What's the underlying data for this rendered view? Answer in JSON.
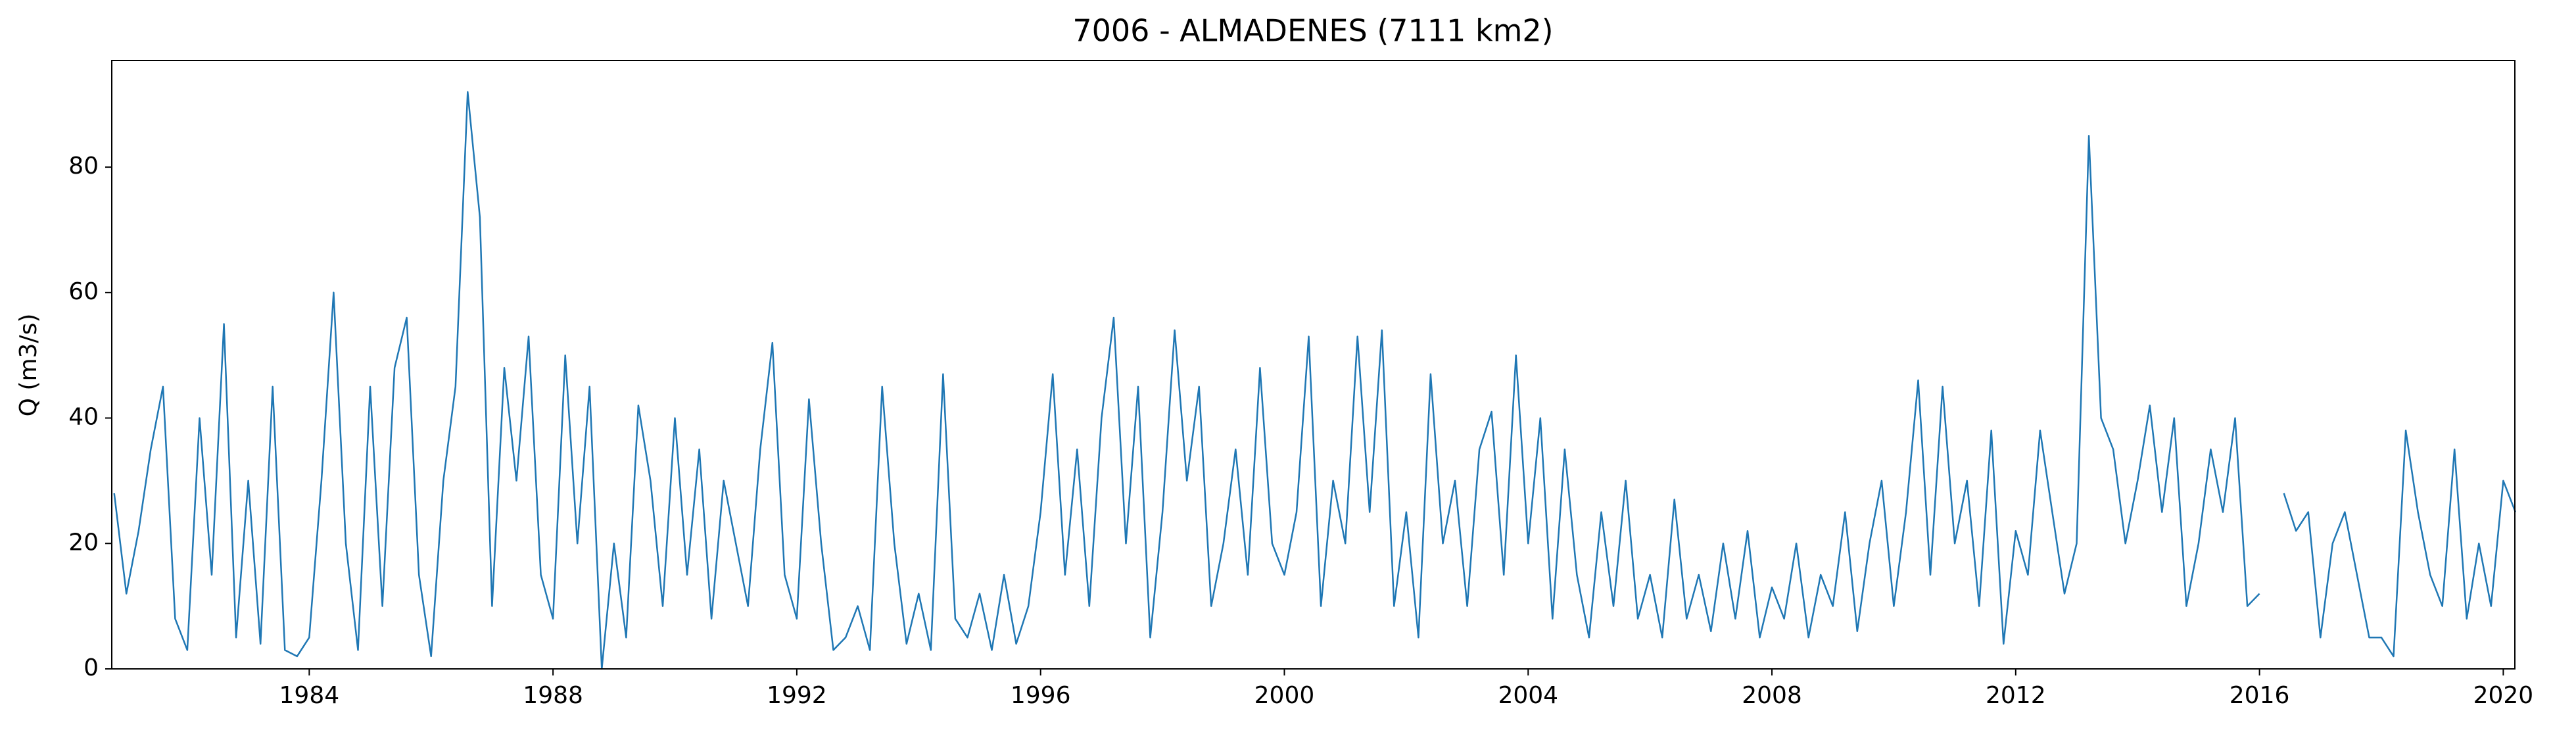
{
  "chart_data": {
    "type": "line",
    "title": "7006 - ALMADENES (7111 km2)",
    "y_label": "Q (m3/s)",
    "x": [
      1980.8,
      1981.0,
      1981.2,
      1981.4,
      1981.6,
      1981.8,
      1982.0,
      1982.2,
      1982.4,
      1982.6,
      1982.8,
      1983.0,
      1983.2,
      1983.4,
      1983.6,
      1983.8,
      1984.0,
      1984.2,
      1984.4,
      1984.6,
      1984.8,
      1985.0,
      1985.2,
      1985.4,
      1985.6,
      1985.8,
      1986.0,
      1986.2,
      1986.4,
      1986.6,
      1986.8,
      1987.0,
      1987.2,
      1987.4,
      1987.6,
      1987.8,
      1988.0,
      1988.2,
      1988.4,
      1988.6,
      1988.8,
      1989.0,
      1989.2,
      1989.4,
      1989.6,
      1989.8,
      1990.0,
      1990.2,
      1990.4,
      1990.6,
      1990.8,
      1991.0,
      1991.2,
      1991.4,
      1991.6,
      1991.8,
      1992.0,
      1992.2,
      1992.4,
      1992.6,
      1992.8,
      1993.0,
      1993.2,
      1993.4,
      1993.6,
      1993.8,
      1994.0,
      1994.2,
      1994.4,
      1994.6,
      1994.8,
      1995.0,
      1995.2,
      1995.4,
      1995.6,
      1995.8,
      1996.0,
      1996.2,
      1996.4,
      1996.6,
      1996.8,
      1997.0,
      1997.2,
      1997.4,
      1997.6,
      1997.8,
      1998.0,
      1998.2,
      1998.4,
      1998.6,
      1998.8,
      1999.0,
      1999.2,
      1999.4,
      1999.6,
      1999.8,
      2000.0,
      2000.2,
      2000.4,
      2000.6,
      2000.8,
      2001.0,
      2001.2,
      2001.4,
      2001.6,
      2001.8,
      2002.0,
      2002.2,
      2002.4,
      2002.6,
      2002.8,
      2003.0,
      2003.2,
      2003.4,
      2003.6,
      2003.8,
      2004.0,
      2004.2,
      2004.4,
      2004.6,
      2004.8,
      2005.0,
      2005.2,
      2005.4,
      2005.6,
      2005.8,
      2006.0,
      2006.2,
      2006.4,
      2006.6,
      2006.8,
      2007.0,
      2007.2,
      2007.4,
      2007.6,
      2007.8,
      2008.0,
      2008.2,
      2008.4,
      2008.6,
      2008.8,
      2009.0,
      2009.2,
      2009.4,
      2009.6,
      2009.8,
      2010.0,
      2010.2,
      2010.4,
      2010.6,
      2010.8,
      2011.0,
      2011.2,
      2011.4,
      2011.6,
      2011.8,
      2012.0,
      2012.2,
      2012.4,
      2012.6,
      2012.8,
      2013.0,
      2013.2,
      2013.4,
      2013.6,
      2013.8,
      2014.0,
      2014.2,
      2014.4,
      2014.6,
      2014.8,
      2015.0,
      2015.2,
      2015.4,
      2015.6,
      2015.8,
      2016.0,
      2016.2,
      2016.4,
      2016.6,
      2016.8,
      2017.0,
      2017.2,
      2017.4,
      2017.6,
      2017.8,
      2018.0,
      2018.2,
      2018.4,
      2018.6,
      2018.8,
      2019.0,
      2019.2,
      2019.4,
      2019.6,
      2019.8,
      2020.0,
      2020.2
    ],
    "series": [
      {
        "color": "#1f77b4",
        "values": [
          28,
          12,
          22,
          35,
          45,
          8,
          3,
          40,
          15,
          55,
          5,
          30,
          4,
          45,
          3,
          2,
          5,
          30,
          60,
          20,
          3,
          45,
          10,
          48,
          56,
          15,
          2,
          30,
          45,
          92,
          72,
          10,
          48,
          30,
          53,
          15,
          8,
          50,
          20,
          45,
          0,
          20,
          5,
          42,
          30,
          10,
          40,
          15,
          35,
          8,
          30,
          20,
          10,
          35,
          52,
          15,
          8,
          43,
          20,
          3,
          5,
          10,
          3,
          45,
          20,
          4,
          12,
          3,
          47,
          8,
          5,
          12,
          3,
          15,
          4,
          10,
          25,
          47,
          15,
          35,
          10,
          40,
          56,
          20,
          45,
          5,
          25,
          54,
          30,
          45,
          10,
          20,
          35,
          15,
          48,
          20,
          15,
          25,
          53,
          10,
          30,
          20,
          53,
          25,
          54,
          10,
          25,
          5,
          47,
          20,
          30,
          10,
          35,
          41,
          15,
          50,
          20,
          40,
          8,
          35,
          15,
          5,
          25,
          10,
          30,
          8,
          15,
          5,
          27,
          8,
          15,
          6,
          20,
          8,
          22,
          5,
          13,
          8,
          20,
          5,
          15,
          10,
          25,
          6,
          20,
          30,
          10,
          25,
          46,
          15,
          45,
          20,
          30,
          10,
          38,
          4,
          22,
          15,
          38,
          25,
          12,
          20,
          85,
          40,
          35,
          20,
          30,
          42,
          25,
          40,
          10,
          20,
          35,
          25,
          40,
          10,
          12,
          null,
          28,
          22,
          25,
          5,
          20,
          25,
          15,
          5,
          5,
          2,
          38,
          25,
          15,
          10,
          35,
          8,
          20,
          10,
          30,
          25
        ]
      }
    ],
    "xlim": [
      1980.76,
      2020.19
    ],
    "xticks": [
      1984,
      1988,
      1992,
      1996,
      2000,
      2004,
      2008,
      2012,
      2016,
      2020
    ],
    "ylim": [
      0,
      97
    ],
    "yticks": [
      0,
      20,
      40,
      60,
      80
    ]
  }
}
